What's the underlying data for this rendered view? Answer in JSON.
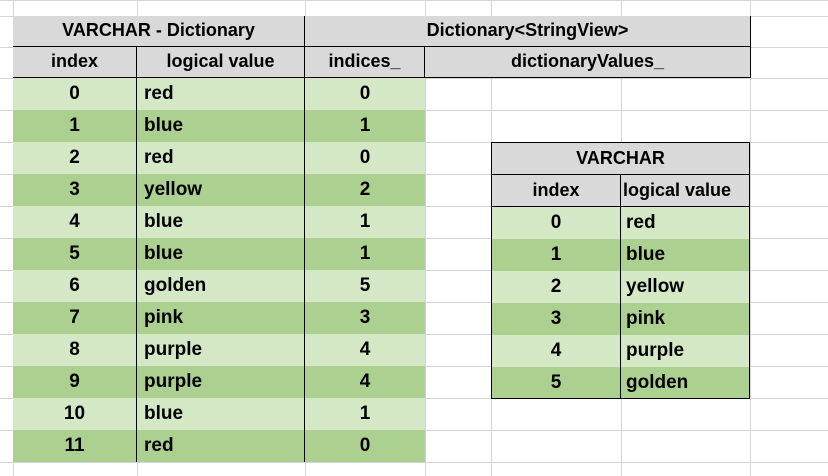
{
  "left_table": {
    "title": "VARCHAR - Dictionary",
    "col_index": "index",
    "col_value": "logical value",
    "rows": [
      {
        "index": "0",
        "value": "red"
      },
      {
        "index": "1",
        "value": "blue"
      },
      {
        "index": "2",
        "value": "red"
      },
      {
        "index": "3",
        "value": "yellow"
      },
      {
        "index": "4",
        "value": "blue"
      },
      {
        "index": "5",
        "value": "blue"
      },
      {
        "index": "6",
        "value": "golden"
      },
      {
        "index": "7",
        "value": "pink"
      },
      {
        "index": "8",
        "value": "purple"
      },
      {
        "index": "9",
        "value": "purple"
      },
      {
        "index": "10",
        "value": "blue"
      },
      {
        "index": "11",
        "value": "red"
      }
    ]
  },
  "dict_table": {
    "title": "Dictionary<StringView>",
    "col_indices": "indices_",
    "col_values": "dictionaryValues_",
    "indices": [
      "0",
      "1",
      "0",
      "2",
      "1",
      "1",
      "5",
      "3",
      "4",
      "4",
      "1",
      "0"
    ]
  },
  "right_table": {
    "title": "VARCHAR",
    "col_index": "index",
    "col_value": "logical value",
    "rows": [
      {
        "index": "0",
        "value": "red"
      },
      {
        "index": "1",
        "value": "blue"
      },
      {
        "index": "2",
        "value": "yellow"
      },
      {
        "index": "3",
        "value": "pink"
      },
      {
        "index": "4",
        "value": "purple"
      },
      {
        "index": "5",
        "value": "golden"
      }
    ]
  },
  "colors": {
    "header_gray": "#d9d9d9",
    "row_light": "#d4e8c6",
    "row_dark": "#acd08f",
    "gridline": "#d4d4d4"
  }
}
